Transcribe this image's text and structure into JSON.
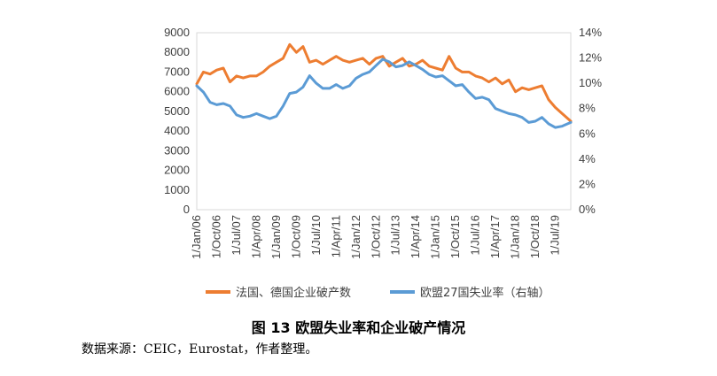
{
  "caption": "图 13 欧盟失业率和企业破产情况",
  "source": "数据来源：CEIC，Eurostat，作者整理。",
  "chart_data": {
    "type": "line",
    "left_axis": {
      "min": 0,
      "max": 9000,
      "ticks": [
        "0",
        "1000",
        "2000",
        "3000",
        "4000",
        "5000",
        "6000",
        "7000",
        "8000",
        "9000"
      ]
    },
    "right_axis": {
      "min": 0,
      "max": 14,
      "ticks": [
        "0%",
        "2%",
        "4%",
        "6%",
        "8%",
        "10%",
        "12%",
        "14%"
      ]
    },
    "x_tick_labels": [
      "1/Jan/06",
      "1/Oct/06",
      "1/Jul/07",
      "1/Apr/08",
      "1/Jan/09",
      "1/Oct/09",
      "1/Jul/10",
      "1/Apr/11",
      "1/Jan/12",
      "1/Oct/12",
      "1/Jul/13",
      "1/Apr/14",
      "1/Jan/15",
      "1/Oct/15",
      "1/Jul/16",
      "1/Apr/17",
      "1/Jan/18",
      "1/Oct/18",
      "1/Jul/19"
    ],
    "x_range": [
      "Jan/06",
      "Feb/20"
    ],
    "series": [
      {
        "name": "法国、德国企业破产数",
        "axis": "left",
        "color": "#ED7D31",
        "x": [
          "Jan/06",
          "Apr/06",
          "Jul/06",
          "Oct/06",
          "Jan/07",
          "Apr/07",
          "Jul/07",
          "Oct/07",
          "Jan/08",
          "Apr/08",
          "Jul/08",
          "Oct/08",
          "Jan/09",
          "Apr/09",
          "Jul/09",
          "Oct/09",
          "Jan/10",
          "Apr/10",
          "Jul/10",
          "Oct/10",
          "Jan/11",
          "Apr/11",
          "Jul/11",
          "Oct/11",
          "Jan/12",
          "Apr/12",
          "Jul/12",
          "Oct/12",
          "Jan/13",
          "Apr/13",
          "Jul/13",
          "Oct/13",
          "Jan/14",
          "Apr/14",
          "Jul/14",
          "Oct/14",
          "Jan/15",
          "Apr/15",
          "Jul/15",
          "Oct/15",
          "Jan/16",
          "Apr/16",
          "Jul/16",
          "Oct/16",
          "Jan/17",
          "Apr/17",
          "Jul/17",
          "Oct/17",
          "Jan/18",
          "Apr/18",
          "Jul/18",
          "Oct/18",
          "Jan/19",
          "Apr/19",
          "Jul/19",
          "Oct/19",
          "Feb/20"
        ],
        "values": [
          6400,
          7000,
          6900,
          7100,
          7200,
          6500,
          6800,
          6700,
          6800,
          6800,
          7000,
          7300,
          7500,
          7700,
          8400,
          8000,
          8300,
          7500,
          7600,
          7400,
          7600,
          7800,
          7600,
          7500,
          7600,
          7700,
          7400,
          7700,
          7800,
          7300,
          7500,
          7700,
          7300,
          7400,
          7600,
          7300,
          7200,
          7100,
          7800,
          7200,
          7000,
          7000,
          6800,
          6700,
          6500,
          6700,
          6400,
          6600,
          6000,
          6200,
          6100,
          6200,
          6300,
          5600,
          5200,
          4900,
          4500
        ]
      },
      {
        "name": "欧盟27国失业率（右轴）",
        "axis": "right",
        "color": "#5B9BD5",
        "x": [
          "Jan/06",
          "Apr/06",
          "Jul/06",
          "Oct/06",
          "Jan/07",
          "Apr/07",
          "Jul/07",
          "Oct/07",
          "Jan/08",
          "Apr/08",
          "Jul/08",
          "Oct/08",
          "Jan/09",
          "Apr/09",
          "Jul/09",
          "Oct/09",
          "Jan/10",
          "Apr/10",
          "Jul/10",
          "Oct/10",
          "Jan/11",
          "Apr/11",
          "Jul/11",
          "Oct/11",
          "Jan/12",
          "Apr/12",
          "Jul/12",
          "Oct/12",
          "Jan/13",
          "Apr/13",
          "Jul/13",
          "Oct/13",
          "Jan/14",
          "Apr/14",
          "Jul/14",
          "Oct/14",
          "Jan/15",
          "Apr/15",
          "Jul/15",
          "Oct/15",
          "Jan/16",
          "Apr/16",
          "Jul/16",
          "Oct/16",
          "Jan/17",
          "Apr/17",
          "Jul/17",
          "Oct/17",
          "Jan/18",
          "Apr/18",
          "Jul/18",
          "Oct/18",
          "Jan/19",
          "Apr/19",
          "Jul/19",
          "Oct/19",
          "Feb/20"
        ],
        "values": [
          9.8,
          9.3,
          8.5,
          8.3,
          8.4,
          8.2,
          7.5,
          7.3,
          7.4,
          7.6,
          7.4,
          7.2,
          7.4,
          8.2,
          9.2,
          9.3,
          9.7,
          10.6,
          10.0,
          9.6,
          9.6,
          9.9,
          9.6,
          9.8,
          10.4,
          10.7,
          10.9,
          11.4,
          11.9,
          11.7,
          11.3,
          11.4,
          11.7,
          11.4,
          11.1,
          10.7,
          10.5,
          10.6,
          10.2,
          9.8,
          9.9,
          9.3,
          8.8,
          8.9,
          8.7,
          8.0,
          7.8,
          7.6,
          7.5,
          7.3,
          6.9,
          7.0,
          7.3,
          6.8,
          6.5,
          6.6,
          6.9
        ]
      }
    ]
  }
}
